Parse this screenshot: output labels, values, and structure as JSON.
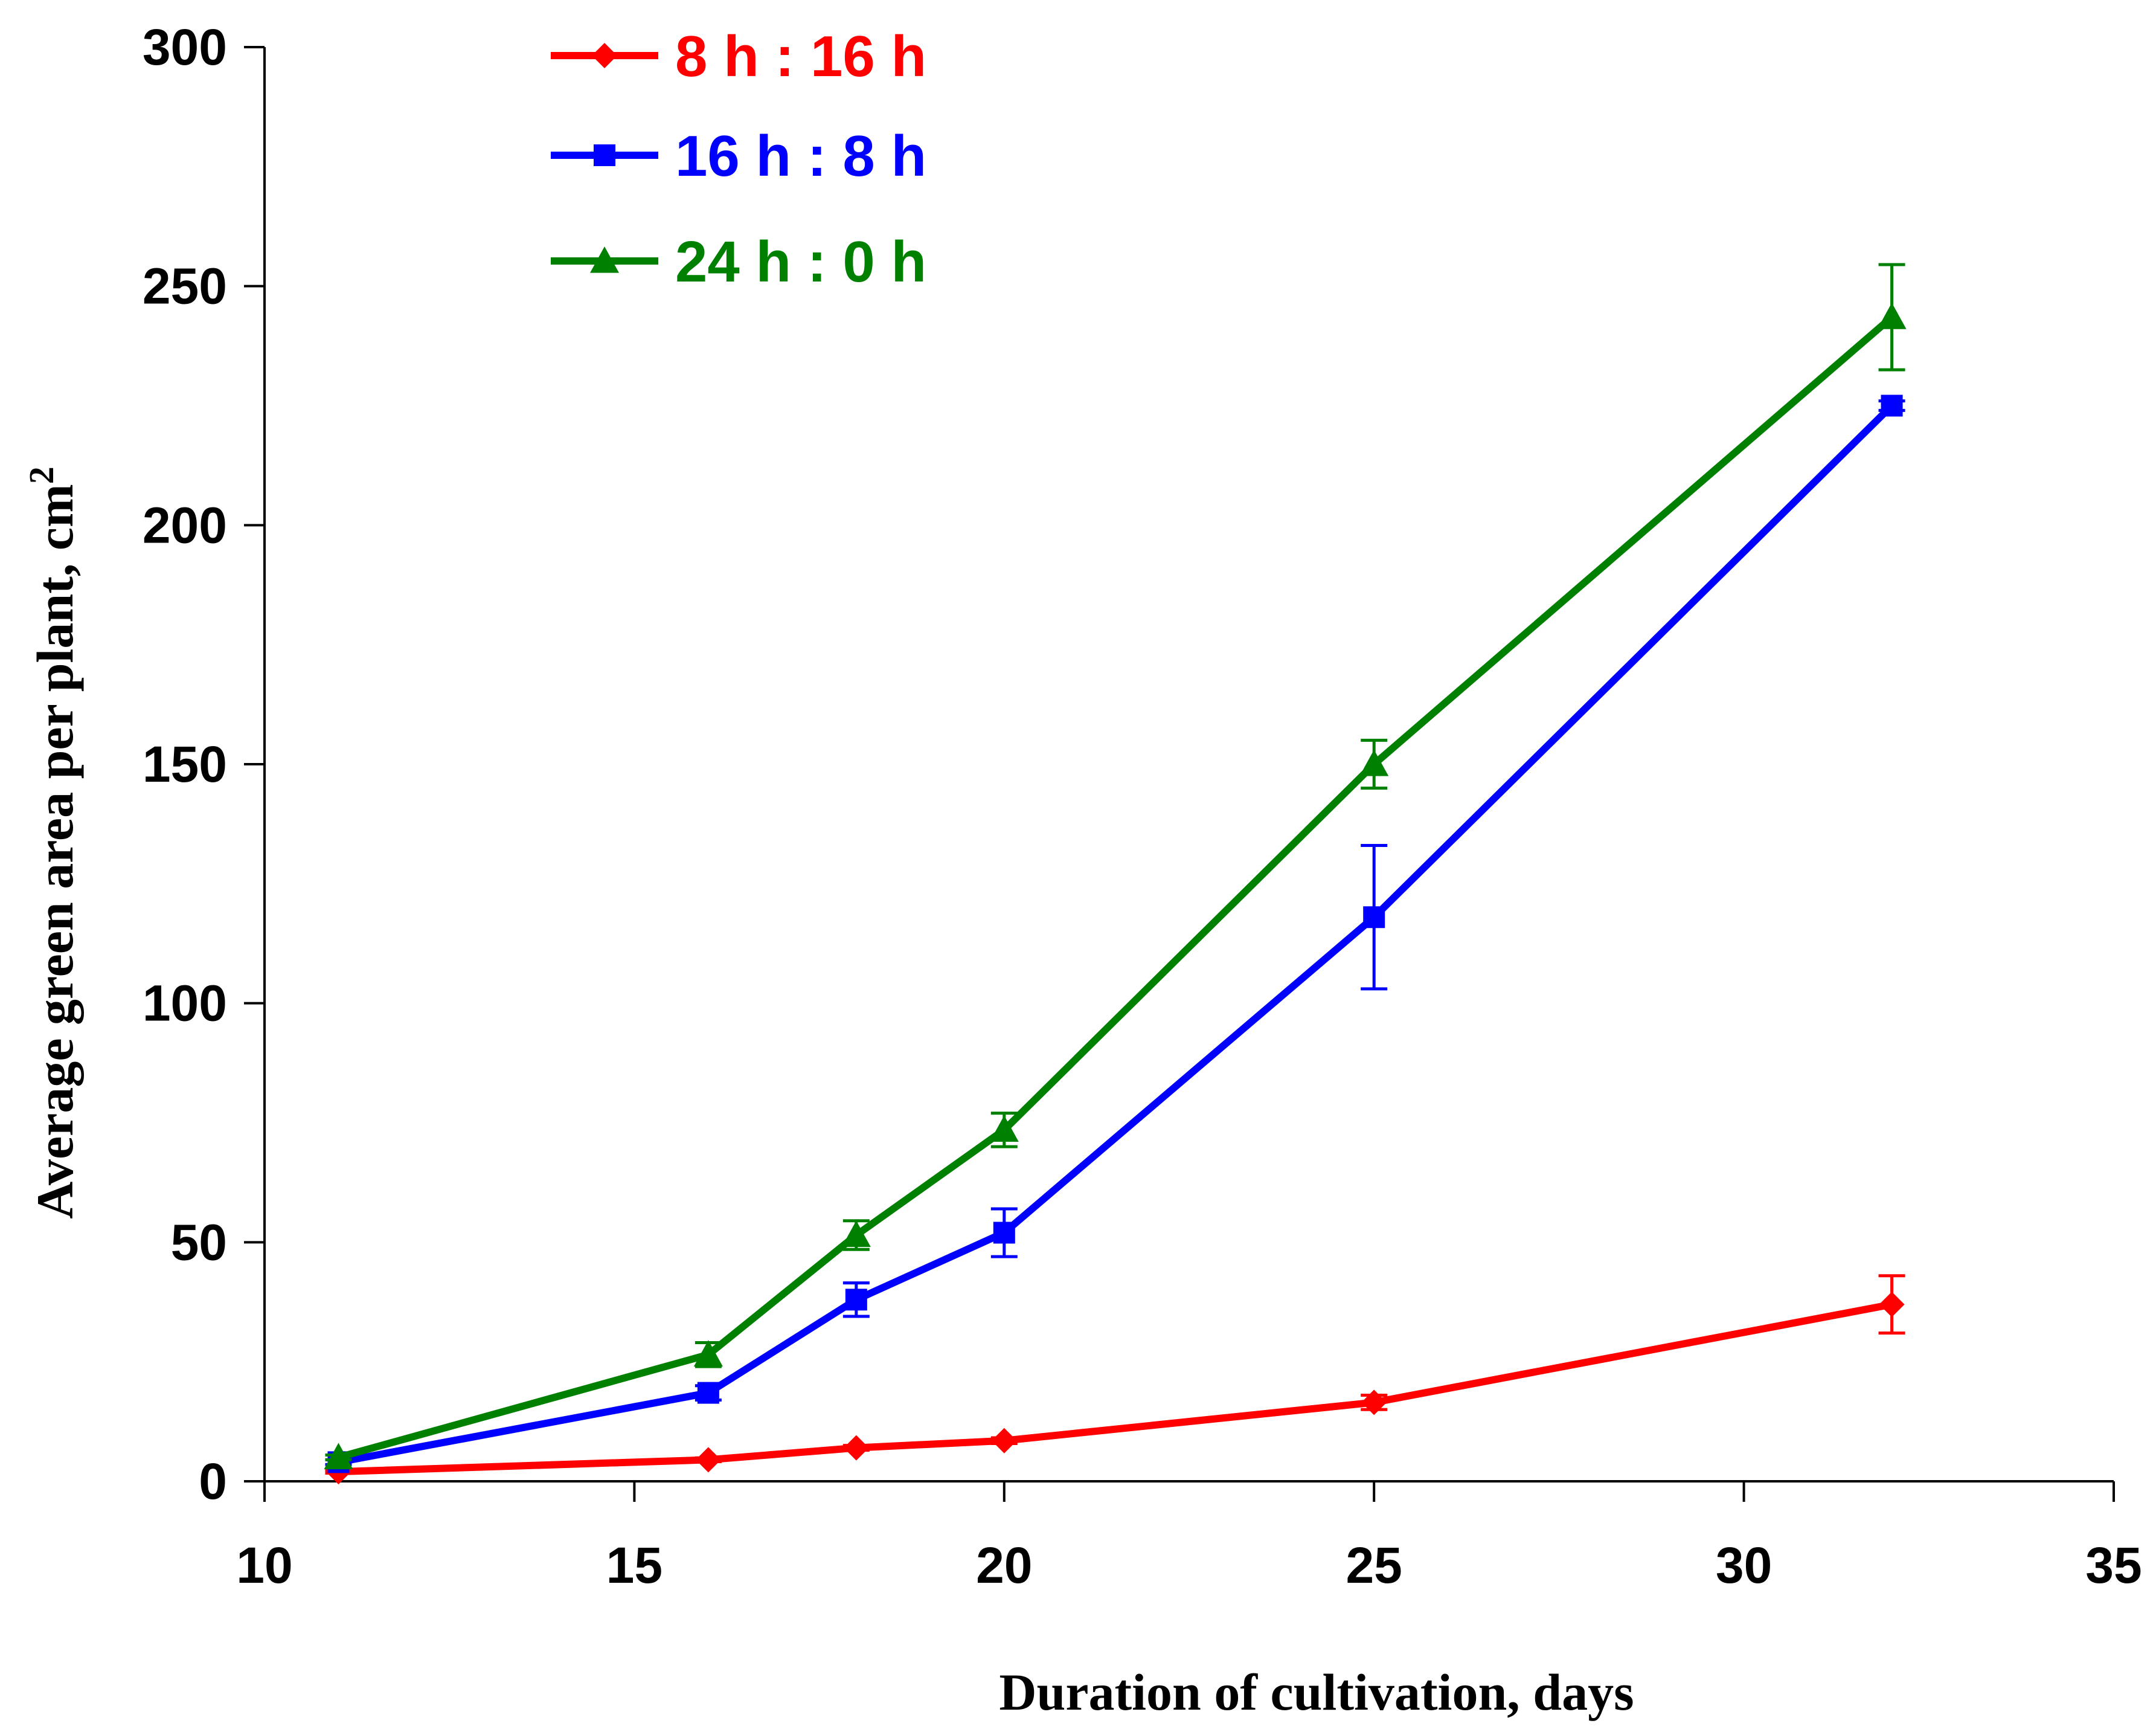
{
  "chart_data": {
    "type": "line",
    "title": "",
    "xlabel": "Duration of cultivation, days",
    "ylabel": "Average green area per plant, cm",
    "ylabel_superscript": "2",
    "xlim": [
      10,
      35
    ],
    "ylim": [
      0,
      300
    ],
    "x_ticks": [
      10,
      15,
      20,
      25,
      30,
      35
    ],
    "y_ticks": [
      0,
      50,
      100,
      150,
      200,
      250,
      300
    ],
    "x_tick_labels": [
      "10",
      "15",
      "20",
      "25",
      "30",
      "35"
    ],
    "y_tick_labels": [
      "0",
      "50",
      "100",
      "150",
      "200",
      "250",
      "300"
    ],
    "grid": false,
    "legend_position": "top-left",
    "series": [
      {
        "name": "8 h : 16 h",
        "color": "#ff0000",
        "marker": "diamond",
        "x": [
          11,
          16,
          18,
          20,
          25,
          32
        ],
        "y": [
          2,
          4.5,
          7,
          8.5,
          16.5,
          37
        ],
        "error": [
          0.3,
          0.4,
          0.5,
          0.6,
          1.5,
          6
        ]
      },
      {
        "name": "16 h : 8 h",
        "color": "#0000ff",
        "marker": "square",
        "x": [
          11,
          16,
          18,
          20,
          25,
          32
        ],
        "y": [
          4,
          18.5,
          38,
          52,
          118,
          225
        ],
        "error": [
          0.5,
          1.5,
          3.5,
          5,
          15,
          1
        ]
      },
      {
        "name": "24 h : 0 h",
        "color": "#008000",
        "marker": "triangle",
        "x": [
          11,
          16,
          18,
          20,
          25,
          32
        ],
        "y": [
          5,
          26.5,
          51.5,
          73.5,
          150,
          243.5
        ],
        "error": [
          0.5,
          2.5,
          3,
          3.5,
          5,
          11
        ]
      }
    ]
  }
}
